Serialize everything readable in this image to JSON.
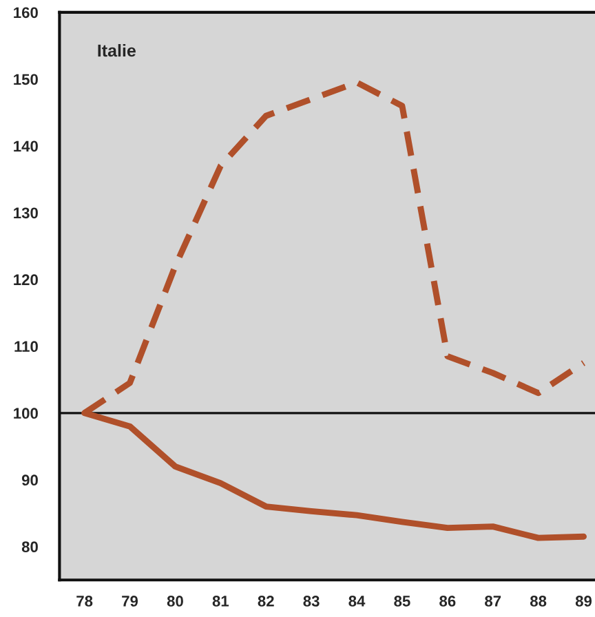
{
  "chart_data": {
    "type": "line",
    "categories": [
      "78",
      "79",
      "80",
      "81",
      "82",
      "83",
      "84",
      "85",
      "86",
      "87",
      "88",
      "89"
    ],
    "series": [
      {
        "color": "#b0502a",
        "line_style": "dashed",
        "values": [
          100,
          104.5,
          122,
          137,
          144.5,
          147,
          149.5,
          146,
          108.5,
          106,
          103,
          107.5
        ]
      },
      {
        "color": "#b0502a",
        "line_style": "solid",
        "values": [
          100,
          98,
          92,
          89.5,
          86,
          85.3,
          84.7,
          83.7,
          82.8,
          83,
          81.3,
          81.5
        ]
      }
    ],
    "ylim": [
      75,
      160
    ],
    "yticks": [
      80,
      90,
      100,
      110,
      120,
      130,
      140,
      150,
      160
    ],
    "ref_lines": [
      {
        "axis": "y",
        "value": 100,
        "color": "#111111"
      }
    ],
    "annotations": [
      "Italie"
    ],
    "grid": false,
    "legend": false,
    "marker": "none"
  }
}
